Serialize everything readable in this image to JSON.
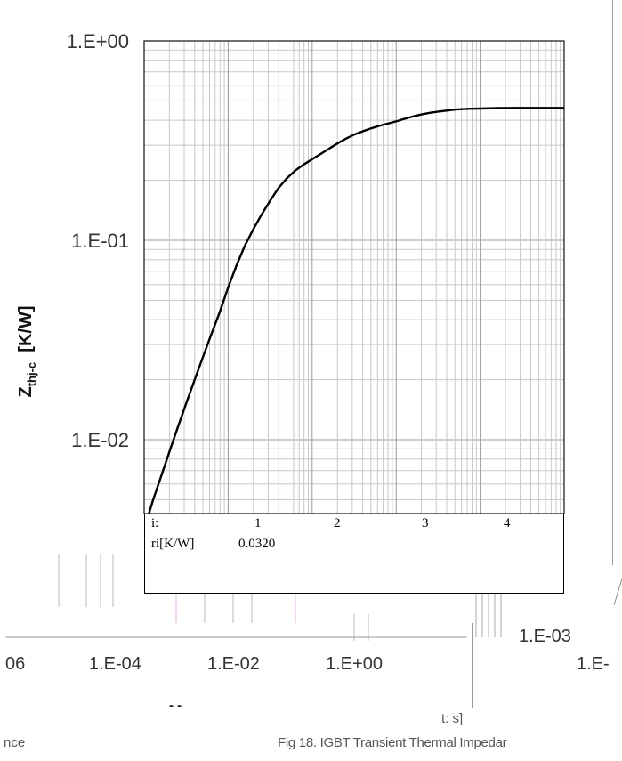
{
  "chart_data": {
    "type": "line",
    "title": "",
    "ylabel_main": "Z",
    "ylabel_sub": "thj-c",
    "ylabel_unit": "[K/W]",
    "yscale": "log",
    "ylim": [
      0.004,
      1
    ],
    "yticks": [
      "1.E+00",
      "1.E-01",
      "1.E-02"
    ],
    "xscale": "log",
    "xlim": [
      0.0001,
      10
    ],
    "grid": true,
    "series": [
      {
        "x": [
          0.000109,
          0.000126,
          0.000158,
          0.0002,
          0.000251,
          0.000316,
          0.000398,
          0.000501,
          0.000631,
          0.000794,
          0.001,
          0.00126,
          0.00158,
          0.002,
          0.00251,
          0.00316,
          0.00398,
          0.00501,
          0.00631,
          0.00794,
          0.01,
          0.0126,
          0.0158,
          0.02,
          0.0251,
          0.0316,
          0.0398,
          0.0501,
          0.0631,
          0.0794,
          0.1,
          0.126,
          0.158,
          0.2,
          0.251,
          0.316,
          0.398,
          0.501,
          0.631,
          0.794,
          1,
          1.585,
          2.512,
          3.981,
          6.31,
          10
        ],
        "y": [
          0.004,
          0.0049,
          0.0065,
          0.0087,
          0.0115,
          0.0152,
          0.0199,
          0.026,
          0.0338,
          0.0436,
          0.058,
          0.075,
          0.094,
          0.114,
          0.135,
          0.158,
          0.183,
          0.205,
          0.224,
          0.24,
          0.255,
          0.271,
          0.288,
          0.306,
          0.323,
          0.339,
          0.352,
          0.364,
          0.375,
          0.385,
          0.395,
          0.407,
          0.418,
          0.428,
          0.436,
          0.442,
          0.447,
          0.452,
          0.455,
          0.457,
          0.458,
          0.46,
          0.461,
          0.461,
          0.461,
          0.461
        ]
      }
    ]
  },
  "table": {
    "header_label": "i:",
    "columns": [
      "1",
      "2",
      "3",
      "4"
    ],
    "row_label": "ri[K/W]",
    "row_values": [
      "0.0320"
    ]
  },
  "fragments": {
    "x_tick_partial_left": "06",
    "x_tick_1": "1.E-04",
    "x_tick_2": "1.E-02",
    "x_tick_3": "1.E+00",
    "right_tick_1": "1.E-03",
    "right_tick_2": "1.E-",
    "caption": "Fig 18. IGBT Transient Thermal Impedar",
    "caption_left": "nce",
    "small_label": "t: s]",
    "dash_label": "- -"
  }
}
